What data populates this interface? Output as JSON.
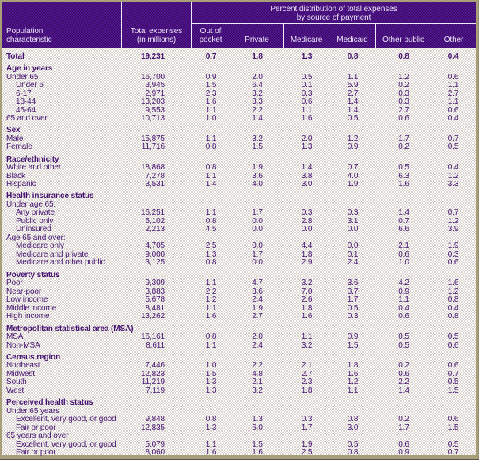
{
  "colors": {
    "frame_tan": "#a89f7a",
    "header_purple_dark": "#3b0d69",
    "header_purple_light": "#541693",
    "header_text": "#ece4f6",
    "separator_white": "#f0ebf8",
    "body_checker_gray": "#d9d1cb",
    "body_checker_white": "#ffffff",
    "body_text_purple": "#451371"
  },
  "table": {
    "header": {
      "col_population": "Population\ncharacteristic",
      "col_expenses": "Total expenses\n(in millions)",
      "span_title": "Percent distribution of total expenses\nby source of payment",
      "payment_columns": [
        "Out of\npocket",
        "Private",
        "Medicare",
        "Medicaid",
        "Other public",
        "Other"
      ]
    },
    "rows": [
      {
        "type": "total",
        "label": "Total",
        "expenses": "19,231",
        "values": [
          "0.7",
          "1.8",
          "1.3",
          "0.8",
          "0.8",
          "0.4"
        ]
      },
      {
        "type": "section",
        "label": "Age in years",
        "expenses": "",
        "values": null
      },
      {
        "type": "data",
        "label": "Under 65",
        "expenses": "16,700",
        "values": [
          "0.9",
          "2.0",
          "0.5",
          "1.1",
          "1.2",
          "0.6"
        ]
      },
      {
        "type": "indent",
        "label": "Under 6",
        "expenses": "3,945",
        "values": [
          "1.5",
          "6.4",
          "0.1",
          "5.9",
          "0.2",
          "1.1"
        ]
      },
      {
        "type": "indent",
        "label": "6-17",
        "expenses": "2,971",
        "values": [
          "2.3",
          "3.2",
          "0.3",
          "2.7",
          "0.3",
          "2.7"
        ]
      },
      {
        "type": "indent",
        "label": "18-44",
        "expenses": "13,203",
        "values": [
          "1.6",
          "3.3",
          "0.6",
          "1.4",
          "0.3",
          "1.1"
        ]
      },
      {
        "type": "indent",
        "label": "45-64",
        "expenses": "9,553",
        "values": [
          "1.1",
          "2.2",
          "1.1",
          "1.4",
          "2.7",
          "0.6"
        ]
      },
      {
        "type": "data",
        "label": "65 and over",
        "expenses": "10,713",
        "values": [
          "1.0",
          "1.4",
          "1.6",
          "0.5",
          "0.6",
          "0.4"
        ]
      },
      {
        "type": "section",
        "label": "Sex",
        "expenses": "",
        "values": null
      },
      {
        "type": "data",
        "label": "Male",
        "expenses": "15,875",
        "values": [
          "1.1",
          "3.2",
          "2.0",
          "1.2",
          "1.7",
          "0.7"
        ]
      },
      {
        "type": "data",
        "label": "Female",
        "expenses": "11,716",
        "values": [
          "0.8",
          "1.5",
          "1.3",
          "0.9",
          "0.2",
          "0.5"
        ]
      },
      {
        "type": "section",
        "label": "Race/ethnicity",
        "expenses": "",
        "values": null
      },
      {
        "type": "data",
        "label": "White and other",
        "expenses": "18,868",
        "values": [
          "0.8",
          "1.9",
          "1.4",
          "0.7",
          "0.5",
          "0.4"
        ]
      },
      {
        "type": "data",
        "label": "Black",
        "expenses": "7,278",
        "values": [
          "1.1",
          "3.6",
          "3.8",
          "4.0",
          "6.3",
          "1.2"
        ]
      },
      {
        "type": "data",
        "label": "Hispanic",
        "expenses": "3,531",
        "values": [
          "1.4",
          "4.0",
          "3.0",
          "1.9",
          "1.6",
          "3.3"
        ]
      },
      {
        "type": "section",
        "label": "Health insurance status",
        "expenses": "",
        "values": null
      },
      {
        "type": "sublabel",
        "label": "Under age 65:",
        "expenses": "",
        "values": null
      },
      {
        "type": "indent",
        "label": "Any private",
        "expenses": "16,251",
        "values": [
          "1.1",
          "1.7",
          "0.3",
          "0.3",
          "1.4",
          "0.7"
        ]
      },
      {
        "type": "indent",
        "label": "Public only",
        "expenses": "5,102",
        "values": [
          "0.8",
          "0.0",
          "2.8",
          "3.1",
          "0.7",
          "1.2"
        ]
      },
      {
        "type": "indent",
        "label": "Uninsured",
        "expenses": "2,213",
        "values": [
          "4.5",
          "0.0",
          "0.0",
          "0.0",
          "6.6",
          "3.9"
        ]
      },
      {
        "type": "sublabel",
        "label": "Age 65 and over:",
        "expenses": "",
        "values": null
      },
      {
        "type": "indent",
        "label": "Medicare only",
        "expenses": "4,705",
        "values": [
          "2.5",
          "0.0",
          "4.4",
          "0.0",
          "2.1",
          "1.9"
        ]
      },
      {
        "type": "indent",
        "label": "Medicare and private",
        "expenses": "9,000",
        "values": [
          "1.3",
          "1.7",
          "1.8",
          "0.1",
          "0.6",
          "0.3"
        ]
      },
      {
        "type": "indent",
        "label": "Medicare and other public",
        "expenses": "3,125",
        "values": [
          "0.8",
          "0.0",
          "2.9",
          "2.4",
          "1.0",
          "0.6"
        ]
      },
      {
        "type": "section",
        "label": "Poverty status",
        "expenses": "",
        "values": null
      },
      {
        "type": "data",
        "label": "Poor",
        "expenses": "9,309",
        "values": [
          "1.1",
          "4.7",
          "3.2",
          "3.6",
          "4.2",
          "1.6"
        ]
      },
      {
        "type": "data",
        "label": "Near-poor",
        "expenses": "3,883",
        "values": [
          "2.2",
          "3.6",
          "7.0",
          "3.7",
          "0.9",
          "1.2"
        ]
      },
      {
        "type": "data",
        "label": "Low income",
        "expenses": "5,678",
        "values": [
          "1.2",
          "2.4",
          "2.6",
          "1.7",
          "1.1",
          "0.8"
        ]
      },
      {
        "type": "data",
        "label": "Middle income",
        "expenses": "8,481",
        "values": [
          "1.1",
          "1.9",
          "1.8",
          "0.5",
          "0.4",
          "0.4"
        ]
      },
      {
        "type": "data",
        "label": "High income",
        "expenses": "13,262",
        "values": [
          "1.6",
          "2.7",
          "1.6",
          "0.3",
          "0.6",
          "0.8"
        ]
      },
      {
        "type": "section",
        "label": "Metropolitan statistical area (MSA)",
        "expenses": "",
        "values": null
      },
      {
        "type": "data",
        "label": "MSA",
        "expenses": "16,161",
        "values": [
          "0.8",
          "2.0",
          "1.1",
          "0.9",
          "0.5",
          "0.5"
        ]
      },
      {
        "type": "data",
        "label": "Non-MSA",
        "expenses": "8,611",
        "values": [
          "1.1",
          "2.4",
          "3.2",
          "1.5",
          "0.5",
          "0.6"
        ]
      },
      {
        "type": "section",
        "label": "Census region",
        "expenses": "",
        "values": null
      },
      {
        "type": "data",
        "label": "Northeast",
        "expenses": "7,446",
        "values": [
          "1.0",
          "2.2",
          "2.1",
          "1.8",
          "0.2",
          "0.6"
        ]
      },
      {
        "type": "data",
        "label": "Midwest",
        "expenses": "12,823",
        "values": [
          "1.5",
          "4.8",
          "2.7",
          "1.6",
          "0.6",
          "0.7"
        ]
      },
      {
        "type": "data",
        "label": "South",
        "expenses": "11,219",
        "values": [
          "1.3",
          "2.1",
          "2.3",
          "1.2",
          "2.2",
          "0.5"
        ]
      },
      {
        "type": "data",
        "label": "West",
        "expenses": "7,119",
        "values": [
          "1.3",
          "3.2",
          "1.8",
          "1.1",
          "1.4",
          "1.5"
        ]
      },
      {
        "type": "section",
        "label": "Perceived health status",
        "expenses": "",
        "values": null
      },
      {
        "type": "sublabel",
        "label": "Under 65 years",
        "expenses": "",
        "values": null
      },
      {
        "type": "indent",
        "label": "Excellent, very good, or good",
        "expenses": "9,848",
        "values": [
          "0.8",
          "1.3",
          "0.3",
          "0.8",
          "0.2",
          "0.6"
        ]
      },
      {
        "type": "indent",
        "label": "Fair or poor",
        "expenses": "12,835",
        "values": [
          "1.3",
          "6.0",
          "1.7",
          "3.0",
          "1.7",
          "1.5"
        ]
      },
      {
        "type": "sublabel",
        "label": "65 years and over",
        "expenses": "",
        "values": null
      },
      {
        "type": "indent",
        "label": "Excellent, very good, or good",
        "expenses": "5,079",
        "values": [
          "1.1",
          "1.5",
          "1.9",
          "0.5",
          "0.6",
          "0.5"
        ]
      },
      {
        "type": "indent",
        "label": "Fair or poor",
        "expenses": "8,060",
        "values": [
          "1.6",
          "1.6",
          "2.5",
          "0.8",
          "0.9",
          "0.7"
        ]
      }
    ]
  }
}
